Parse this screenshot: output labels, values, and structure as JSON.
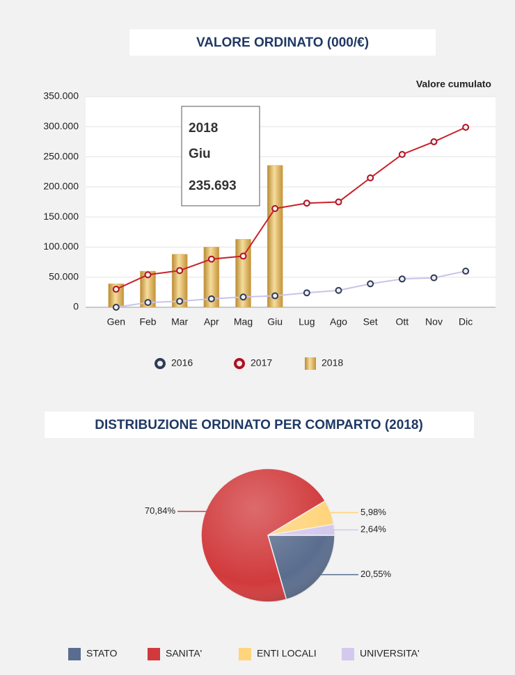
{
  "chart_data": [
    {
      "type": "combo",
      "title": "VALORE ORDINATO (000/€)",
      "annotation": "Valore cumulato",
      "categories": [
        "Gen",
        "Feb",
        "Mar",
        "Apr",
        "Mag",
        "Giu",
        "Lug",
        "Ago",
        "Set",
        "Ott",
        "Nov",
        "Dic"
      ],
      "series": [
        {
          "name": "2016",
          "type": "line",
          "color": "#c9c3e8",
          "marker_color": "#2f3a5a",
          "values": [
            0,
            8000,
            10000,
            14000,
            17000,
            19000,
            24000,
            28000,
            39000,
            47000,
            49000,
            60000
          ]
        },
        {
          "name": "2017",
          "type": "line",
          "color": "#c8202a",
          "marker_color": "#b01020",
          "values": [
            30000,
            54000,
            61000,
            80000,
            85000,
            164000,
            173000,
            175000,
            215000,
            254000,
            275000,
            299000
          ]
        },
        {
          "name": "2018",
          "type": "bar",
          "color": "#d9a84e",
          "values": [
            39000,
            60000,
            88000,
            100000,
            113000,
            235693,
            null,
            null,
            null,
            null,
            null,
            null
          ],
          "value_labels": [
            null,
            null,
            null,
            null,
            null,
            "235.693",
            null,
            null,
            null,
            null,
            null,
            null
          ]
        }
      ],
      "ylim": [
        0,
        350000
      ],
      "yticks": [
        0,
        {
          "value": 50000,
          "label": "50.000"
        },
        {
          "value": 100000,
          "label": "100.000"
        },
        {
          "value": 150000,
          "label": "150.000"
        },
        {
          "value": 200000,
          "label": "200.000"
        },
        {
          "value": 250000,
          "label": "250.000"
        },
        {
          "value": 300000,
          "label": "300.000"
        },
        {
          "value": 350000,
          "label": "350.000"
        }
      ],
      "grid": true,
      "legend": "bottom"
    },
    {
      "type": "pie",
      "title": "DISTRIBUZIONE ORDINATO PER COMPARTO (2018)",
      "categories": [
        "STATO",
        "SANITA'",
        "ENTI LOCALI",
        "UNIVERSITA'"
      ],
      "values": [
        20.55,
        70.84,
        5.98,
        2.64
      ],
      "value_labels": [
        "20,55%",
        "70,84%",
        "5,98%",
        "2,64%"
      ],
      "colors": [
        "#5a6d8e",
        "#d13a3c",
        "#ffd47c",
        "#d3c9ee"
      ],
      "legend": "bottom"
    }
  ]
}
